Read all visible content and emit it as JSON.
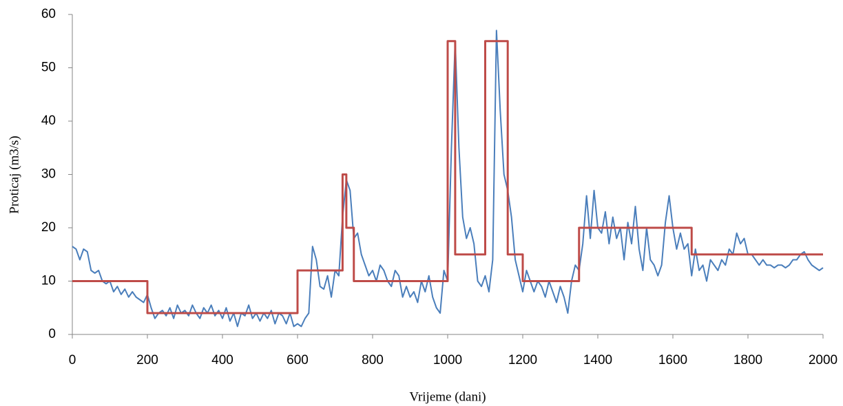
{
  "chart_data": {
    "type": "line",
    "x_label": "Vrijeme (dani)",
    "y_label": "Proticaj (m3/s)",
    "xlim": [
      0,
      2000
    ],
    "xticks": [
      0,
      200,
      400,
      600,
      800,
      1000,
      1200,
      1400,
      1600,
      1800,
      2000
    ],
    "ylim": [
      0,
      60
    ],
    "yticks": [
      0,
      10,
      20,
      30,
      40,
      50,
      60
    ],
    "grid": false,
    "series": [
      {
        "color": "#4a7ebb",
        "x": [
          0,
          10,
          20,
          30,
          40,
          50,
          60,
          70,
          80,
          90,
          100,
          110,
          120,
          130,
          140,
          150,
          160,
          170,
          180,
          190,
          200,
          210,
          220,
          230,
          240,
          250,
          260,
          270,
          280,
          290,
          300,
          310,
          320,
          330,
          340,
          350,
          360,
          370,
          380,
          390,
          400,
          410,
          420,
          430,
          440,
          450,
          460,
          470,
          480,
          490,
          500,
          510,
          520,
          530,
          540,
          550,
          560,
          570,
          580,
          590,
          600,
          610,
          620,
          630,
          640,
          650,
          660,
          670,
          680,
          690,
          700,
          710,
          720,
          730,
          740,
          750,
          760,
          770,
          780,
          790,
          800,
          810,
          820,
          830,
          840,
          850,
          860,
          870,
          880,
          890,
          900,
          910,
          920,
          930,
          940,
          950,
          960,
          970,
          980,
          990,
          1000,
          1010,
          1020,
          1030,
          1040,
          1050,
          1060,
          1070,
          1080,
          1090,
          1100,
          1110,
          1120,
          1130,
          1140,
          1150,
          1160,
          1170,
          1180,
          1190,
          1200,
          1210,
          1220,
          1230,
          1240,
          1250,
          1260,
          1270,
          1280,
          1290,
          1300,
          1310,
          1320,
          1330,
          1340,
          1350,
          1360,
          1370,
          1380,
          1390,
          1400,
          1410,
          1420,
          1430,
          1440,
          1450,
          1460,
          1470,
          1480,
          1490,
          1500,
          1510,
          1520,
          1530,
          1540,
          1550,
          1560,
          1570,
          1580,
          1590,
          1600,
          1610,
          1620,
          1630,
          1640,
          1650,
          1660,
          1670,
          1680,
          1690,
          1700,
          1710,
          1720,
          1730,
          1740,
          1750,
          1760,
          1770,
          1780,
          1790,
          1800,
          1810,
          1820,
          1830,
          1840,
          1850,
          1860,
          1870,
          1880,
          1890,
          1900,
          1910,
          1920,
          1930,
          1940,
          1950,
          1960,
          1970,
          1980,
          1990,
          2000
        ],
        "values": [
          16.5,
          16,
          14,
          16,
          15.5,
          12,
          11.5,
          12,
          10,
          9.5,
          10,
          8,
          9,
          7.5,
          8.5,
          7,
          8,
          7,
          6.5,
          6,
          7.5,
          5,
          3,
          4,
          4.5,
          3.5,
          5,
          3,
          5.5,
          4,
          4.5,
          3.5,
          5.5,
          4,
          3,
          5,
          4,
          5.5,
          3.5,
          4.5,
          3,
          5,
          2.5,
          4,
          1.5,
          4,
          3.5,
          5.5,
          3,
          4,
          2.5,
          4,
          3,
          4.5,
          2,
          4,
          3.5,
          2,
          4,
          1.5,
          2,
          1.5,
          3,
          4,
          16.5,
          14,
          9,
          8.5,
          11,
          7,
          12,
          11,
          22,
          29,
          27,
          18,
          19,
          15,
          13,
          11,
          12,
          10,
          13,
          12,
          10,
          9,
          12,
          11,
          7,
          9,
          7,
          8,
          6,
          10,
          8,
          11,
          7,
          5,
          4,
          12,
          10,
          35,
          55,
          35,
          22,
          18,
          20,
          17,
          10,
          9,
          11,
          8,
          14,
          57,
          42,
          30,
          27,
          22,
          14,
          11,
          8,
          12,
          10,
          8,
          10,
          9,
          7,
          10,
          8,
          6,
          9,
          7,
          4,
          10,
          13,
          12,
          17,
          26,
          18,
          27,
          20,
          19,
          23,
          17,
          22,
          18,
          20,
          14,
          21,
          17,
          24,
          16,
          12,
          20,
          14,
          13,
          11,
          13,
          21,
          26,
          20,
          16,
          19,
          16,
          17,
          11,
          16,
          12,
          13,
          10,
          14,
          13,
          12,
          14,
          13,
          16,
          15,
          19,
          17,
          18,
          15,
          15,
          14,
          13,
          14,
          13,
          13,
          12.5,
          13,
          13,
          12.5,
          13,
          14,
          14,
          15,
          15.5,
          14,
          13,
          12.5,
          12,
          12.5
        ]
      },
      {
        "color": "#be4b48",
        "x": [
          0,
          200,
          200,
          600,
          600,
          720,
          720,
          730,
          730,
          750,
          750,
          1000,
          1000,
          1020,
          1020,
          1100,
          1100,
          1160,
          1160,
          1200,
          1200,
          1350,
          1350,
          1650,
          1650,
          2000
        ],
        "values": [
          10,
          10,
          4,
          4,
          12,
          12,
          30,
          30,
          20,
          20,
          10,
          10,
          55,
          55,
          15,
          15,
          55,
          55,
          15,
          15,
          10,
          10,
          20,
          20,
          15,
          15
        ]
      }
    ]
  }
}
